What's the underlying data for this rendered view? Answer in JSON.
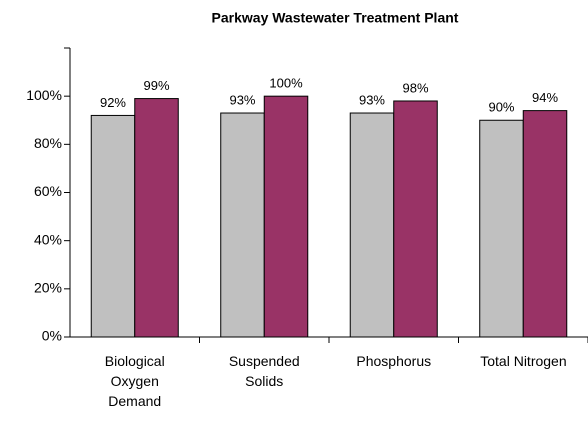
{
  "chart_data": {
    "type": "bar",
    "title": "Parkway Wastewater Treatment Plant",
    "categories": [
      "Biological Oxygen Demand",
      "Suspended Solids",
      "Phosphorus",
      "Total Nitrogen"
    ],
    "series": [
      {
        "color": "#c0c0c0",
        "values": [
          92,
          93,
          93,
          90
        ],
        "value_labels": [
          "92%",
          "93%",
          "93%",
          "90%"
        ]
      },
      {
        "color": "#993366",
        "values": [
          99,
          100,
          98,
          94
        ],
        "value_labels": [
          "99%",
          "100%",
          "98%",
          "94%"
        ]
      }
    ],
    "ylim": [
      0,
      120
    ],
    "yticks": [
      {
        "value": 0,
        "label": "0%"
      },
      {
        "value": 20,
        "label": "20%"
      },
      {
        "value": 40,
        "label": "40%"
      },
      {
        "value": 60,
        "label": "60%"
      },
      {
        "value": 80,
        "label": "80%"
      },
      {
        "value": 100,
        "label": "100%"
      }
    ]
  }
}
